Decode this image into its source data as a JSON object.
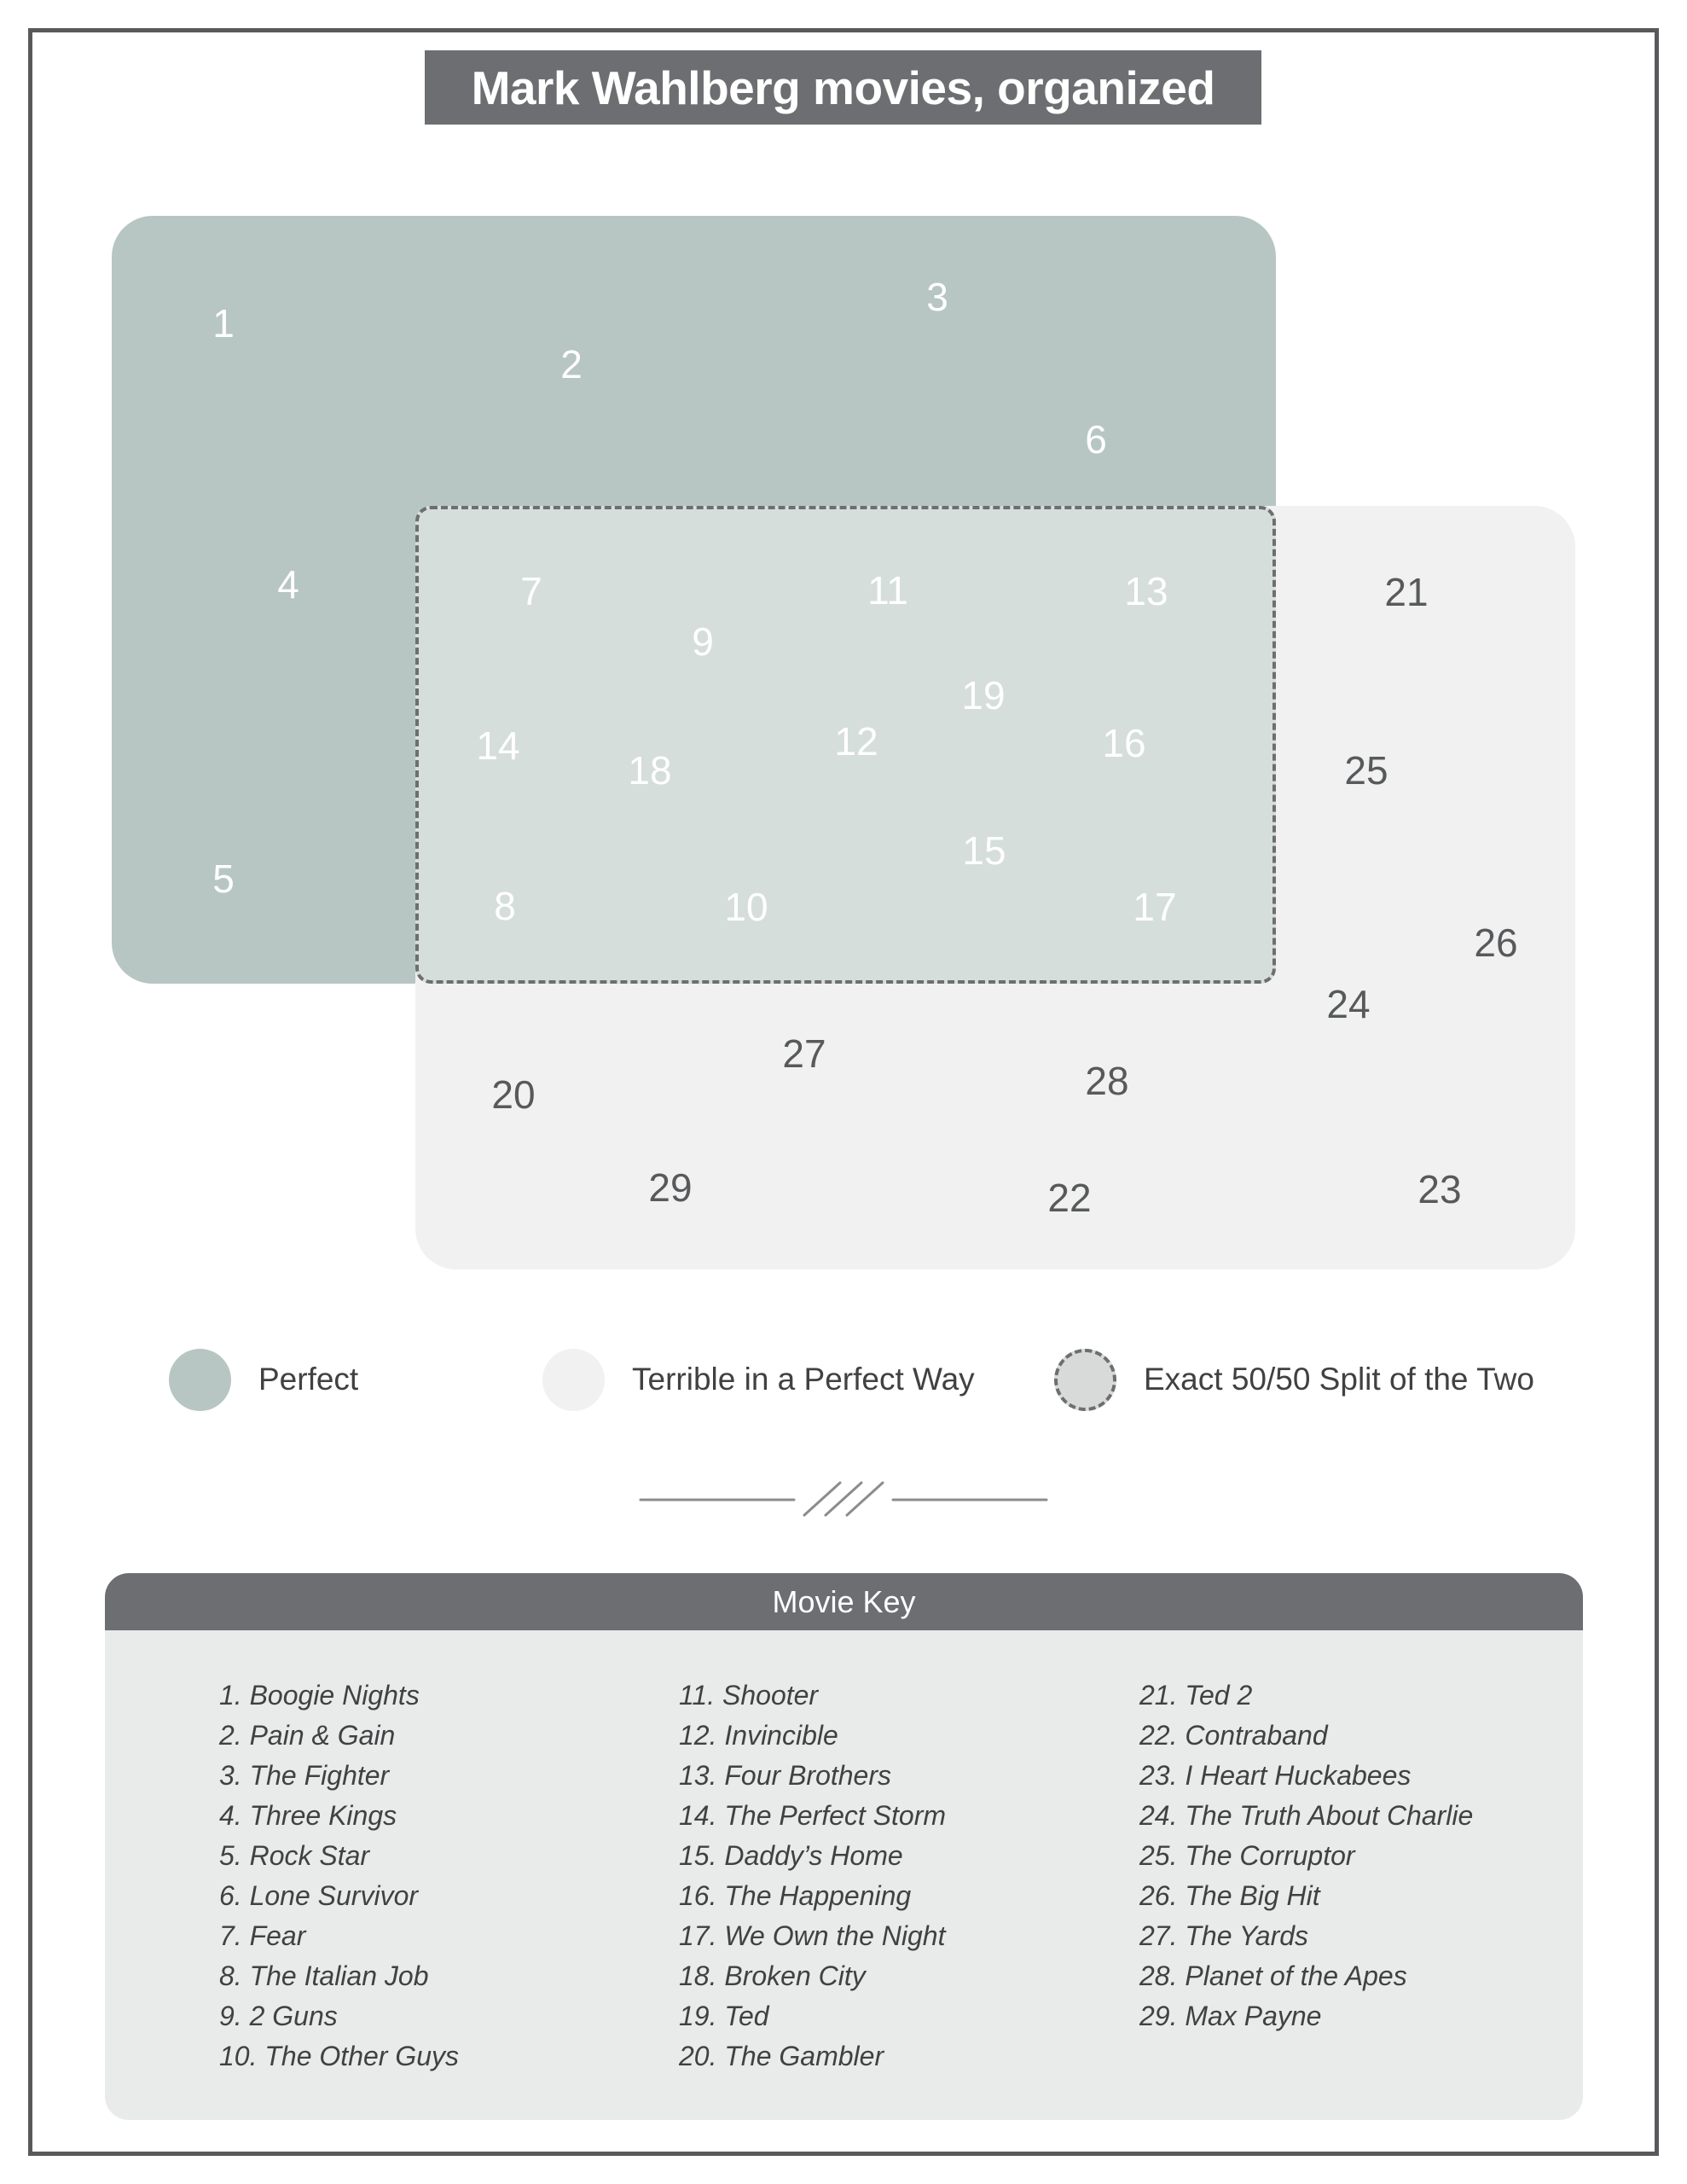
{
  "title": "Mark Wahlberg movies, organized",
  "legend": [
    {
      "label": "Perfect",
      "color": "#b7c6c2",
      "border": "solid"
    },
    {
      "label": "Terrible in a Perfect Way",
      "color": "#f0f1f0",
      "border": "solid"
    },
    {
      "label": "Exact 50/50 Split of the Two",
      "color": "#d8dad9",
      "border": "dashed"
    }
  ],
  "venn": {
    "colors": {
      "perfect": "#b7c6c2",
      "terrible": "#f0f1f0",
      "overlap": "#d6dedb",
      "dashed_border": "#6d6e71"
    },
    "regions": {
      "perfect_only": {
        "label": "Perfect",
        "numbers": [
          1,
          2,
          3,
          4,
          5,
          6
        ]
      },
      "split": {
        "label": "Exact 50/50 Split of the Two",
        "numbers": [
          7,
          8,
          9,
          10,
          11,
          12,
          13,
          14,
          15,
          16,
          17,
          18,
          19
        ]
      },
      "terrible_only": {
        "label": "Terrible in a Perfect Way",
        "numbers": [
          20,
          21,
          22,
          23,
          24,
          25,
          26,
          27,
          28,
          29
        ]
      }
    }
  },
  "movie_key": {
    "header": "Movie Key",
    "columns": [
      [
        {
          "n": 1,
          "title": "Boogie Nights"
        },
        {
          "n": 2,
          "title": "Pain & Gain"
        },
        {
          "n": 3,
          "title": "The Fighter"
        },
        {
          "n": 4,
          "title": "Three Kings"
        },
        {
          "n": 5,
          "title": "Rock Star"
        },
        {
          "n": 6,
          "title": "Lone Survivor"
        },
        {
          "n": 7,
          "title": "Fear"
        },
        {
          "n": 8,
          "title": "The Italian Job"
        },
        {
          "n": 9,
          "title": "2 Guns"
        },
        {
          "n": 10,
          "title": "The Other Guys"
        }
      ],
      [
        {
          "n": 11,
          "title": "Shooter"
        },
        {
          "n": 12,
          "title": "Invincible"
        },
        {
          "n": 13,
          "title": "Four Brothers"
        },
        {
          "n": 14,
          "title": "The Perfect Storm"
        },
        {
          "n": 15,
          "title": "Daddy’s Home"
        },
        {
          "n": 16,
          "title": "The Happening"
        },
        {
          "n": 17,
          "title": "We Own the Night"
        },
        {
          "n": 18,
          "title": "Broken City"
        },
        {
          "n": 19,
          "title": "Ted"
        },
        {
          "n": 20,
          "title": "The Gambler"
        }
      ],
      [
        {
          "n": 21,
          "title": "Ted 2"
        },
        {
          "n": 22,
          "title": "Contraband"
        },
        {
          "n": 23,
          "title": "I Heart Huckabees"
        },
        {
          "n": 24,
          "title": "The Truth About Charlie"
        },
        {
          "n": 25,
          "title": "The Corruptor"
        },
        {
          "n": 26,
          "title": "The Big Hit"
        },
        {
          "n": 27,
          "title": "The Yards"
        },
        {
          "n": 28,
          "title": "Planet of the Apes"
        },
        {
          "n": 29,
          "title": "Max Payne"
        }
      ]
    ]
  }
}
